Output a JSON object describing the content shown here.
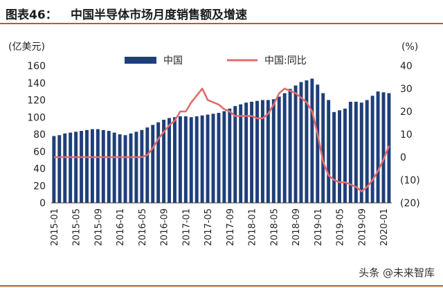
{
  "figure": {
    "label": "图表46：",
    "title": "中国半导体市场月度销售额及增速"
  },
  "watermark": "头条 @未来智库",
  "colors": {
    "bar": "#1f3f79",
    "line": "#e36b6b",
    "accent": "#b85a30"
  },
  "chart_data": {
    "type": "bar",
    "left_axis_label": "(亿美元)",
    "right_axis_label": "(%)",
    "left_ylim": [
      0,
      160
    ],
    "left_ticks": [
      0,
      20,
      40,
      60,
      80,
      100,
      120,
      140,
      160
    ],
    "right_ylim": [
      -20,
      40
    ],
    "right_ticks": [
      "40",
      "30",
      "20",
      "10",
      "0",
      "(10)",
      "(20)"
    ],
    "x_tick_labels": [
      "2015-01",
      "2015-05",
      "2015-09",
      "2016-01",
      "2016-05",
      "2016-09",
      "2017-01",
      "2017-05",
      "2017-09",
      "2018-01",
      "2018-05",
      "2018-09",
      "2019-01",
      "2019-05",
      "2019-09",
      "2020-01"
    ],
    "legend": {
      "bar": "中国",
      "line": "中国:同比"
    },
    "categories": [
      "2015-01",
      "2015-02",
      "2015-03",
      "2015-04",
      "2015-05",
      "2015-06",
      "2015-07",
      "2015-08",
      "2015-09",
      "2015-10",
      "2015-11",
      "2015-12",
      "2016-01",
      "2016-02",
      "2016-03",
      "2016-04",
      "2016-05",
      "2016-06",
      "2016-07",
      "2016-08",
      "2016-09",
      "2016-10",
      "2016-11",
      "2016-12",
      "2017-01",
      "2017-02",
      "2017-03",
      "2017-04",
      "2017-05",
      "2017-06",
      "2017-07",
      "2017-08",
      "2017-09",
      "2017-10",
      "2017-11",
      "2017-12",
      "2018-01",
      "2018-02",
      "2018-03",
      "2018-04",
      "2018-05",
      "2018-06",
      "2018-07",
      "2018-08",
      "2018-09",
      "2018-10",
      "2018-11",
      "2018-12",
      "2019-01",
      "2019-02",
      "2019-03",
      "2019-04",
      "2019-05",
      "2019-06",
      "2019-07",
      "2019-08",
      "2019-09",
      "2019-10",
      "2019-11",
      "2019-12",
      "2020-01",
      "2020-02"
    ],
    "series": [
      {
        "name": "中国",
        "values": [
          78,
          79,
          81,
          82,
          83,
          84,
          85,
          86,
          86,
          85,
          84,
          82,
          80,
          79,
          81,
          83,
          85,
          88,
          91,
          94,
          97,
          99,
          100,
          101,
          101,
          100,
          101,
          102,
          103,
          104,
          105,
          107,
          110,
          113,
          115,
          117,
          118,
          119,
          120,
          120,
          121,
          124,
          128,
          133,
          137,
          141,
          143,
          145,
          138,
          128,
          120,
          106,
          108,
          110,
          118,
          118,
          117,
          120,
          125,
          130,
          129,
          128
        ]
      },
      {
        "name": "中国:同比",
        "values": [
          0,
          0,
          0,
          0,
          0,
          0,
          0,
          0,
          0,
          0,
          0,
          0,
          0,
          0,
          0,
          0,
          0,
          1,
          4,
          8,
          11,
          14,
          16,
          20,
          20,
          24,
          27,
          30,
          25,
          24,
          23,
          21,
          20,
          18,
          18,
          18,
          18,
          17,
          17,
          19,
          23,
          28,
          30,
          29,
          28,
          26,
          24,
          20,
          10,
          -2,
          -8,
          -10,
          -11,
          -11,
          -12,
          -13,
          -15,
          -13,
          -10,
          -6,
          -1,
          5
        ]
      }
    ]
  }
}
